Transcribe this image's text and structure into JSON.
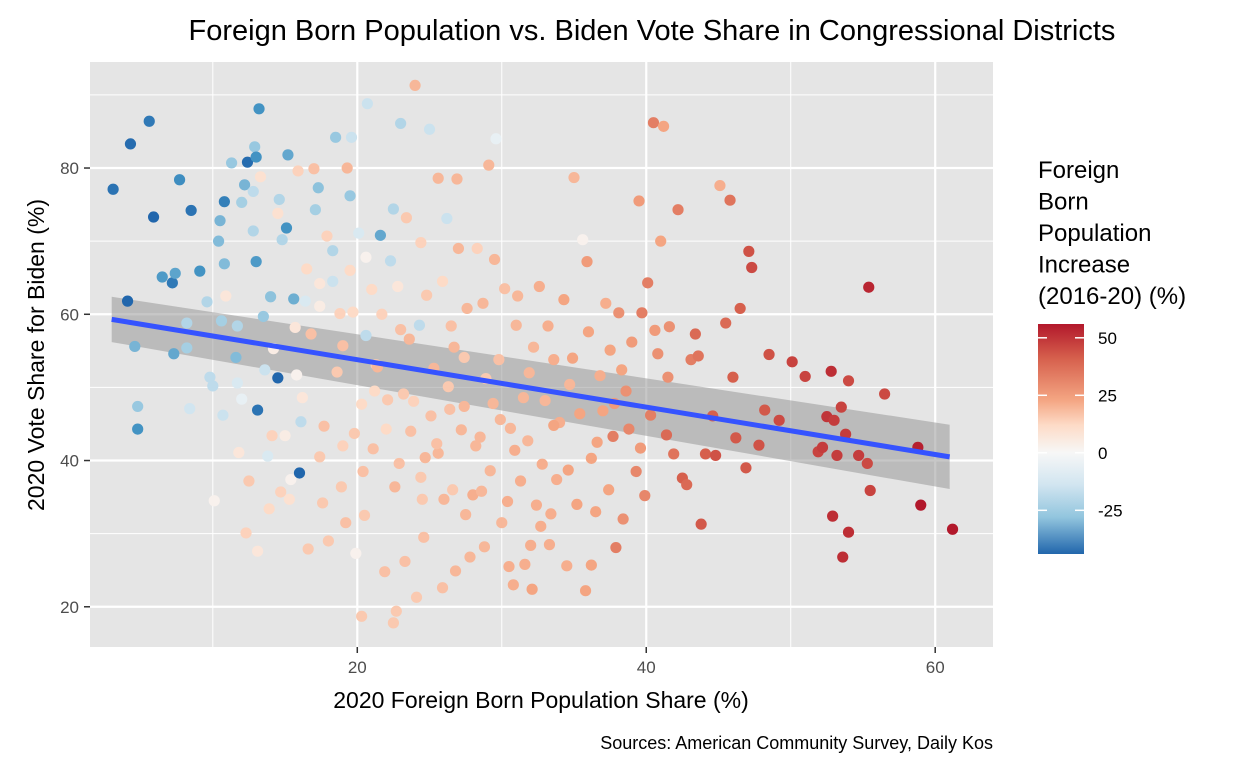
{
  "chart_data": {
    "type": "scatter",
    "title": "Foreign Born Population vs. Biden Vote Share in Congressional Districts",
    "xlabel": "2020 Foreign Born Population Share (%)",
    "ylabel": "2020 Vote Share for Biden (%)",
    "caption": "Sources: American Community Survey, Daily Kos",
    "xlim": [
      1.5,
      64
    ],
    "ylim": [
      14.5,
      94.5
    ],
    "x_ticks": [
      20,
      40,
      60
    ],
    "y_ticks": [
      20,
      40,
      60,
      80
    ],
    "grid": true,
    "legend": {
      "title_lines": [
        "Foreign",
        "Born",
        "Population",
        "Increase",
        "(2016-20) (%)"
      ],
      "position": "right",
      "range": [
        -44,
        56
      ],
      "ticks": [
        50,
        25,
        0,
        -25
      ]
    },
    "colors": {
      "panel_background": "#e5e5e5",
      "grid": "#ffffff",
      "trend_line": "#3553ff",
      "confidence_band": "#999999",
      "scale": [
        "#1e5aa3",
        "#4f8bc3",
        "#a6cbe2",
        "#f6f6f6",
        "#f9c3a5",
        "#e46d50",
        "#b2182b"
      ]
    },
    "trend": {
      "x": [
        3,
        61
      ],
      "y": [
        59.3,
        40.5
      ],
      "ci_lower": [
        56.2,
        36.1
      ],
      "ci_upper": [
        62.4,
        44.9
      ]
    },
    "points": [
      [
        3.1,
        77.1,
        -40
      ],
      [
        4.3,
        83.3,
        -42
      ],
      [
        5.6,
        86.4,
        -38
      ],
      [
        5.9,
        73.3,
        -44
      ],
      [
        4.1,
        61.8,
        -44
      ],
      [
        4.6,
        55.6,
        -20
      ],
      [
        4.8,
        44.3,
        -30
      ],
      [
        4.8,
        47.4,
        -14
      ],
      [
        6.5,
        65.1,
        -28
      ],
      [
        7.2,
        64.3,
        -38
      ],
      [
        7.4,
        65.6,
        -25
      ],
      [
        7.3,
        54.6,
        -24
      ],
      [
        7.7,
        78.4,
        -32
      ],
      [
        8.2,
        58.8,
        -10
      ],
      [
        8.2,
        55.4,
        -12
      ],
      [
        8.5,
        74.2,
        -40
      ],
      [
        9.1,
        65.9,
        -30
      ],
      [
        8.4,
        47.1,
        -5
      ],
      [
        9.6,
        61.7,
        -10
      ],
      [
        9.8,
        51.4,
        -8
      ],
      [
        10.0,
        50.2,
        -8
      ],
      [
        10.1,
        34.5,
        2
      ],
      [
        10.4,
        70.0,
        -18
      ],
      [
        10.5,
        72.8,
        -20
      ],
      [
        10.6,
        59.1,
        -12
      ],
      [
        10.8,
        66.9,
        -18
      ],
      [
        10.8,
        75.4,
        -36
      ],
      [
        10.9,
        62.5,
        6
      ],
      [
        10.7,
        46.2,
        -6
      ],
      [
        11.3,
        80.7,
        -14
      ],
      [
        11.6,
        54.1,
        -18
      ],
      [
        11.7,
        58.4,
        -10
      ],
      [
        11.7,
        50.6,
        -4
      ],
      [
        11.8,
        41.1,
        6
      ],
      [
        12.0,
        75.3,
        -12
      ],
      [
        12.2,
        77.7,
        -20
      ],
      [
        12.4,
        80.8,
        -42
      ],
      [
        12.3,
        30.1,
        12
      ],
      [
        12.5,
        37.2,
        14
      ],
      [
        12.8,
        71.4,
        -10
      ],
      [
        12.8,
        76.8,
        -8
      ],
      [
        12.9,
        82.9,
        -14
      ],
      [
        13.0,
        81.5,
        -30
      ],
      [
        13.0,
        67.2,
        -28
      ],
      [
        13.1,
        46.9,
        -40
      ],
      [
        13.1,
        27.6,
        6
      ],
      [
        13.2,
        88.1,
        -30
      ],
      [
        13.5,
        59.7,
        -14
      ],
      [
        13.3,
        78.8,
        8
      ],
      [
        13.8,
        40.6,
        -4
      ],
      [
        13.6,
        52.4,
        -6
      ],
      [
        14.0,
        62.4,
        -16
      ],
      [
        14.1,
        43.4,
        12
      ],
      [
        14.5,
        51.3,
        -44
      ],
      [
        14.6,
        75.7,
        -10
      ],
      [
        14.5,
        73.8,
        8
      ],
      [
        14.8,
        70.2,
        -10
      ],
      [
        14.7,
        35.7,
        12
      ],
      [
        15.1,
        71.8,
        -30
      ],
      [
        15.0,
        43.4,
        4
      ],
      [
        15.2,
        81.8,
        -24
      ],
      [
        15.4,
        37.4,
        2
      ],
      [
        15.6,
        62.1,
        -22
      ],
      [
        15.8,
        51.7,
        2
      ],
      [
        15.9,
        79.6,
        12
      ],
      [
        16.0,
        38.3,
        -44
      ],
      [
        16.1,
        45.3,
        -8
      ],
      [
        16.4,
        61.8,
        -4
      ],
      [
        16.5,
        66.2,
        10
      ],
      [
        16.2,
        48.6,
        6
      ],
      [
        16.8,
        57.3,
        16
      ],
      [
        17.0,
        79.9,
        16
      ],
      [
        17.1,
        74.3,
        -12
      ],
      [
        17.3,
        77.3,
        -16
      ],
      [
        17.4,
        61.1,
        4
      ],
      [
        17.4,
        40.5,
        14
      ],
      [
        17.6,
        34.2,
        14
      ],
      [
        17.7,
        44.7,
        16
      ],
      [
        18.0,
        29.0,
        14
      ],
      [
        18.3,
        68.7,
        -10
      ],
      [
        18.5,
        84.2,
        -14
      ],
      [
        18.6,
        52.1,
        14
      ],
      [
        18.8,
        60.1,
        12
      ],
      [
        19.0,
        55.7,
        16
      ],
      [
        19.2,
        31.5,
        16
      ],
      [
        19.3,
        80.0,
        18
      ],
      [
        19.5,
        66.0,
        10
      ],
      [
        19.5,
        76.2,
        -14
      ],
      [
        19.8,
        43.7,
        14
      ],
      [
        19.6,
        84.2,
        -6
      ],
      [
        19.9,
        27.3,
        2
      ],
      [
        20.1,
        71.1,
        -4
      ],
      [
        20.3,
        47.7,
        10
      ],
      [
        20.6,
        57.1,
        -8
      ],
      [
        20.6,
        67.8,
        2
      ],
      [
        20.3,
        18.7,
        14
      ],
      [
        20.7,
        88.8,
        -6
      ],
      [
        21.0,
        63.4,
        10
      ],
      [
        21.1,
        41.6,
        16
      ],
      [
        21.3,
        53.1,
        14
      ],
      [
        21.6,
        70.8,
        -24
      ],
      [
        21.7,
        60.0,
        12
      ],
      [
        22.0,
        44.3,
        10
      ],
      [
        22.3,
        67.3,
        -8
      ],
      [
        22.5,
        74.4,
        -10
      ],
      [
        22.6,
        36.4,
        18
      ],
      [
        22.5,
        17.8,
        14
      ],
      [
        22.7,
        19.4,
        14
      ],
      [
        22.8,
        63.8,
        6
      ],
      [
        23.0,
        86.1,
        -10
      ],
      [
        23.0,
        57.9,
        16
      ],
      [
        23.2,
        49.1,
        14
      ],
      [
        23.4,
        73.2,
        14
      ],
      [
        23.6,
        56.6,
        18
      ],
      [
        23.9,
        48.1,
        12
      ],
      [
        24.0,
        91.3,
        18
      ],
      [
        24.1,
        21.3,
        14
      ],
      [
        24.3,
        58.5,
        -8
      ],
      [
        24.5,
        34.7,
        14
      ],
      [
        24.4,
        69.8,
        12
      ],
      [
        24.6,
        29.5,
        16
      ],
      [
        24.7,
        40.4,
        18
      ],
      [
        25.0,
        85.3,
        -6
      ],
      [
        25.1,
        46.1,
        16
      ],
      [
        25.3,
        52.6,
        18
      ],
      [
        25.6,
        78.6,
        18
      ],
      [
        25.9,
        64.5,
        10
      ],
      [
        26.0,
        34.7,
        18
      ],
      [
        26.2,
        73.1,
        -6
      ],
      [
        26.3,
        50.1,
        14
      ],
      [
        26.5,
        58.4,
        16
      ],
      [
        26.6,
        36.0,
        14
      ],
      [
        26.8,
        24.9,
        18
      ],
      [
        26.9,
        78.5,
        18
      ],
      [
        27.0,
        69.0,
        18
      ],
      [
        27.2,
        44.2,
        18
      ],
      [
        27.4,
        54.1,
        14
      ],
      [
        27.5,
        32.6,
        18
      ],
      [
        27.8,
        26.8,
        18
      ],
      [
        28.0,
        35.3,
        20
      ],
      [
        28.3,
        69.0,
        12
      ],
      [
        28.5,
        43.2,
        18
      ],
      [
        28.7,
        61.5,
        18
      ],
      [
        28.9,
        51.2,
        14
      ],
      [
        29.1,
        80.4,
        18
      ],
      [
        29.2,
        38.6,
        18
      ],
      [
        29.4,
        47.8,
        18
      ],
      [
        29.6,
        84.0,
        -2
      ],
      [
        29.8,
        53.8,
        16
      ],
      [
        30.0,
        31.5,
        18
      ],
      [
        30.2,
        63.5,
        16
      ],
      [
        30.5,
        25.5,
        20
      ],
      [
        30.6,
        44.4,
        18
      ],
      [
        30.8,
        23.0,
        20
      ],
      [
        31.0,
        58.5,
        18
      ],
      [
        31.3,
        37.2,
        20
      ],
      [
        31.5,
        48.6,
        18
      ],
      [
        31.8,
        42.7,
        18
      ],
      [
        32.0,
        28.4,
        20
      ],
      [
        32.2,
        55.5,
        18
      ],
      [
        32.4,
        33.9,
        20
      ],
      [
        32.6,
        63.8,
        20
      ],
      [
        32.8,
        39.5,
        20
      ],
      [
        33.0,
        48.2,
        18
      ],
      [
        33.2,
        58.4,
        20
      ],
      [
        33.4,
        32.7,
        20
      ],
      [
        33.6,
        53.8,
        20
      ],
      [
        33.8,
        37.4,
        20
      ],
      [
        34.0,
        45.2,
        20
      ],
      [
        34.3,
        62.0,
        22
      ],
      [
        34.5,
        25.6,
        20
      ],
      [
        34.7,
        50.4,
        18
      ],
      [
        35.0,
        78.7,
        18
      ],
      [
        35.2,
        34.0,
        22
      ],
      [
        35.4,
        46.4,
        22
      ],
      [
        35.6,
        70.2,
        2
      ],
      [
        35.8,
        22.2,
        22
      ],
      [
        36.0,
        57.6,
        22
      ],
      [
        36.2,
        40.3,
        22
      ],
      [
        36.5,
        33.0,
        22
      ],
      [
        36.8,
        51.6,
        20
      ],
      [
        37.0,
        46.8,
        22
      ],
      [
        37.2,
        61.5,
        20
      ],
      [
        37.5,
        55.1,
        22
      ],
      [
        37.7,
        43.3,
        30
      ],
      [
        37.9,
        28.1,
        30
      ],
      [
        38.1,
        60.2,
        26
      ],
      [
        38.4,
        32.0,
        26
      ],
      [
        38.6,
        49.5,
        26
      ],
      [
        38.8,
        44.3,
        28
      ],
      [
        39.0,
        56.2,
        24
      ],
      [
        39.3,
        38.5,
        28
      ],
      [
        39.5,
        75.5,
        24
      ],
      [
        39.7,
        60.2,
        30
      ],
      [
        39.9,
        35.2,
        28
      ],
      [
        40.1,
        64.3,
        30
      ],
      [
        40.3,
        46.2,
        30
      ],
      [
        40.5,
        86.2,
        30
      ],
      [
        40.8,
        54.6,
        26
      ],
      [
        41.0,
        70.0,
        22
      ],
      [
        41.2,
        85.7,
        22
      ],
      [
        41.4,
        43.5,
        34
      ],
      [
        41.6,
        58.3,
        26
      ],
      [
        41.9,
        40.9,
        32
      ],
      [
        42.2,
        74.3,
        30
      ],
      [
        42.5,
        37.6,
        36
      ],
      [
        42.8,
        36.7,
        34
      ],
      [
        43.1,
        53.8,
        30
      ],
      [
        43.4,
        57.3,
        34
      ],
      [
        43.6,
        54.3,
        32
      ],
      [
        43.8,
        31.3,
        38
      ],
      [
        44.1,
        40.9,
        36
      ],
      [
        44.6,
        46.1,
        36
      ],
      [
        44.8,
        40.7,
        40
      ],
      [
        45.1,
        77.6,
        20
      ],
      [
        45.5,
        58.8,
        34
      ],
      [
        45.8,
        75.6,
        32
      ],
      [
        46.0,
        51.4,
        36
      ],
      [
        46.2,
        43.1,
        38
      ],
      [
        46.5,
        60.8,
        36
      ],
      [
        46.9,
        39.0,
        38
      ],
      [
        47.1,
        68.6,
        40
      ],
      [
        47.3,
        66.4,
        42
      ],
      [
        47.8,
        42.1,
        40
      ],
      [
        48.2,
        46.9,
        38
      ],
      [
        48.5,
        54.5,
        40
      ],
      [
        49.2,
        45.5,
        42
      ],
      [
        50.1,
        53.5,
        44
      ],
      [
        51.0,
        51.5,
        44
      ],
      [
        51.9,
        41.2,
        44
      ],
      [
        52.2,
        41.8,
        46
      ],
      [
        52.5,
        46.0,
        48
      ],
      [
        52.8,
        52.2,
        50
      ],
      [
        52.9,
        32.4,
        50
      ],
      [
        53.0,
        45.5,
        46
      ],
      [
        53.2,
        40.7,
        46
      ],
      [
        53.5,
        47.3,
        44
      ],
      [
        53.6,
        26.8,
        50
      ],
      [
        53.8,
        43.6,
        46
      ],
      [
        54.0,
        30.2,
        50
      ],
      [
        54.0,
        50.9,
        42
      ],
      [
        54.7,
        40.7,
        46
      ],
      [
        55.3,
        39.6,
        42
      ],
      [
        55.4,
        63.7,
        52
      ],
      [
        55.5,
        35.9,
        44
      ],
      [
        56.5,
        49.1,
        42
      ],
      [
        58.8,
        41.8,
        54
      ],
      [
        59.0,
        33.9,
        56
      ],
      [
        61.2,
        30.6,
        56
      ],
      [
        17.4,
        64.2,
        6
      ],
      [
        18.3,
        64.5,
        -6
      ],
      [
        19.0,
        42.0,
        12
      ],
      [
        20.4,
        38.5,
        16
      ],
      [
        21.4,
        52.8,
        18
      ],
      [
        22.1,
        48.3,
        14
      ],
      [
        23.7,
        44.0,
        16
      ],
      [
        24.8,
        62.6,
        14
      ],
      [
        25.6,
        41.0,
        18
      ],
      [
        26.7,
        55.5,
        18
      ],
      [
        27.6,
        60.8,
        18
      ],
      [
        28.6,
        35.8,
        18
      ],
      [
        29.5,
        67.5,
        18
      ],
      [
        30.9,
        41.4,
        20
      ],
      [
        31.9,
        52.0,
        18
      ],
      [
        32.7,
        31.0,
        20
      ],
      [
        33.6,
        44.8,
        22
      ],
      [
        34.6,
        38.7,
        22
      ],
      [
        35.9,
        67.2,
        24
      ],
      [
        36.6,
        42.5,
        22
      ],
      [
        37.4,
        36.0,
        22
      ],
      [
        38.3,
        52.4,
        22
      ],
      [
        39.6,
        41.7,
        24
      ],
      [
        40.6,
        57.8,
        24
      ],
      [
        41.5,
        51.4,
        26
      ],
      [
        13.9,
        33.4,
        10
      ],
      [
        15.3,
        34.7,
        8
      ],
      [
        16.6,
        27.9,
        14
      ],
      [
        18.9,
        36.4,
        14
      ],
      [
        20.5,
        32.5,
        14
      ],
      [
        21.9,
        24.8,
        16
      ],
      [
        23.3,
        26.2,
        16
      ],
      [
        25.9,
        22.6,
        16
      ],
      [
        27.4,
        47.4,
        18
      ],
      [
        28.8,
        28.2,
        18
      ],
      [
        30.4,
        34.4,
        20
      ],
      [
        31.6,
        25.8,
        20
      ],
      [
        32.1,
        22.4,
        22
      ],
      [
        33.3,
        28.5,
        20
      ],
      [
        36.2,
        25.7,
        22
      ],
      [
        12.0,
        48.4,
        -2
      ],
      [
        14.2,
        55.3,
        4
      ],
      [
        15.7,
        58.2,
        6
      ],
      [
        17.9,
        70.7,
        12
      ],
      [
        19.7,
        60.3,
        10
      ],
      [
        21.2,
        49.5,
        10
      ],
      [
        22.9,
        39.6,
        16
      ],
      [
        24.4,
        37.7,
        14
      ],
      [
        25.5,
        42.3,
        16
      ],
      [
        26.4,
        47.0,
        16
      ],
      [
        28.2,
        42.0,
        18
      ],
      [
        29.9,
        45.6,
        18
      ],
      [
        31.1,
        62.5,
        18
      ],
      [
        34.9,
        54.0,
        22
      ],
      [
        37.8,
        47.8,
        24
      ]
    ]
  }
}
